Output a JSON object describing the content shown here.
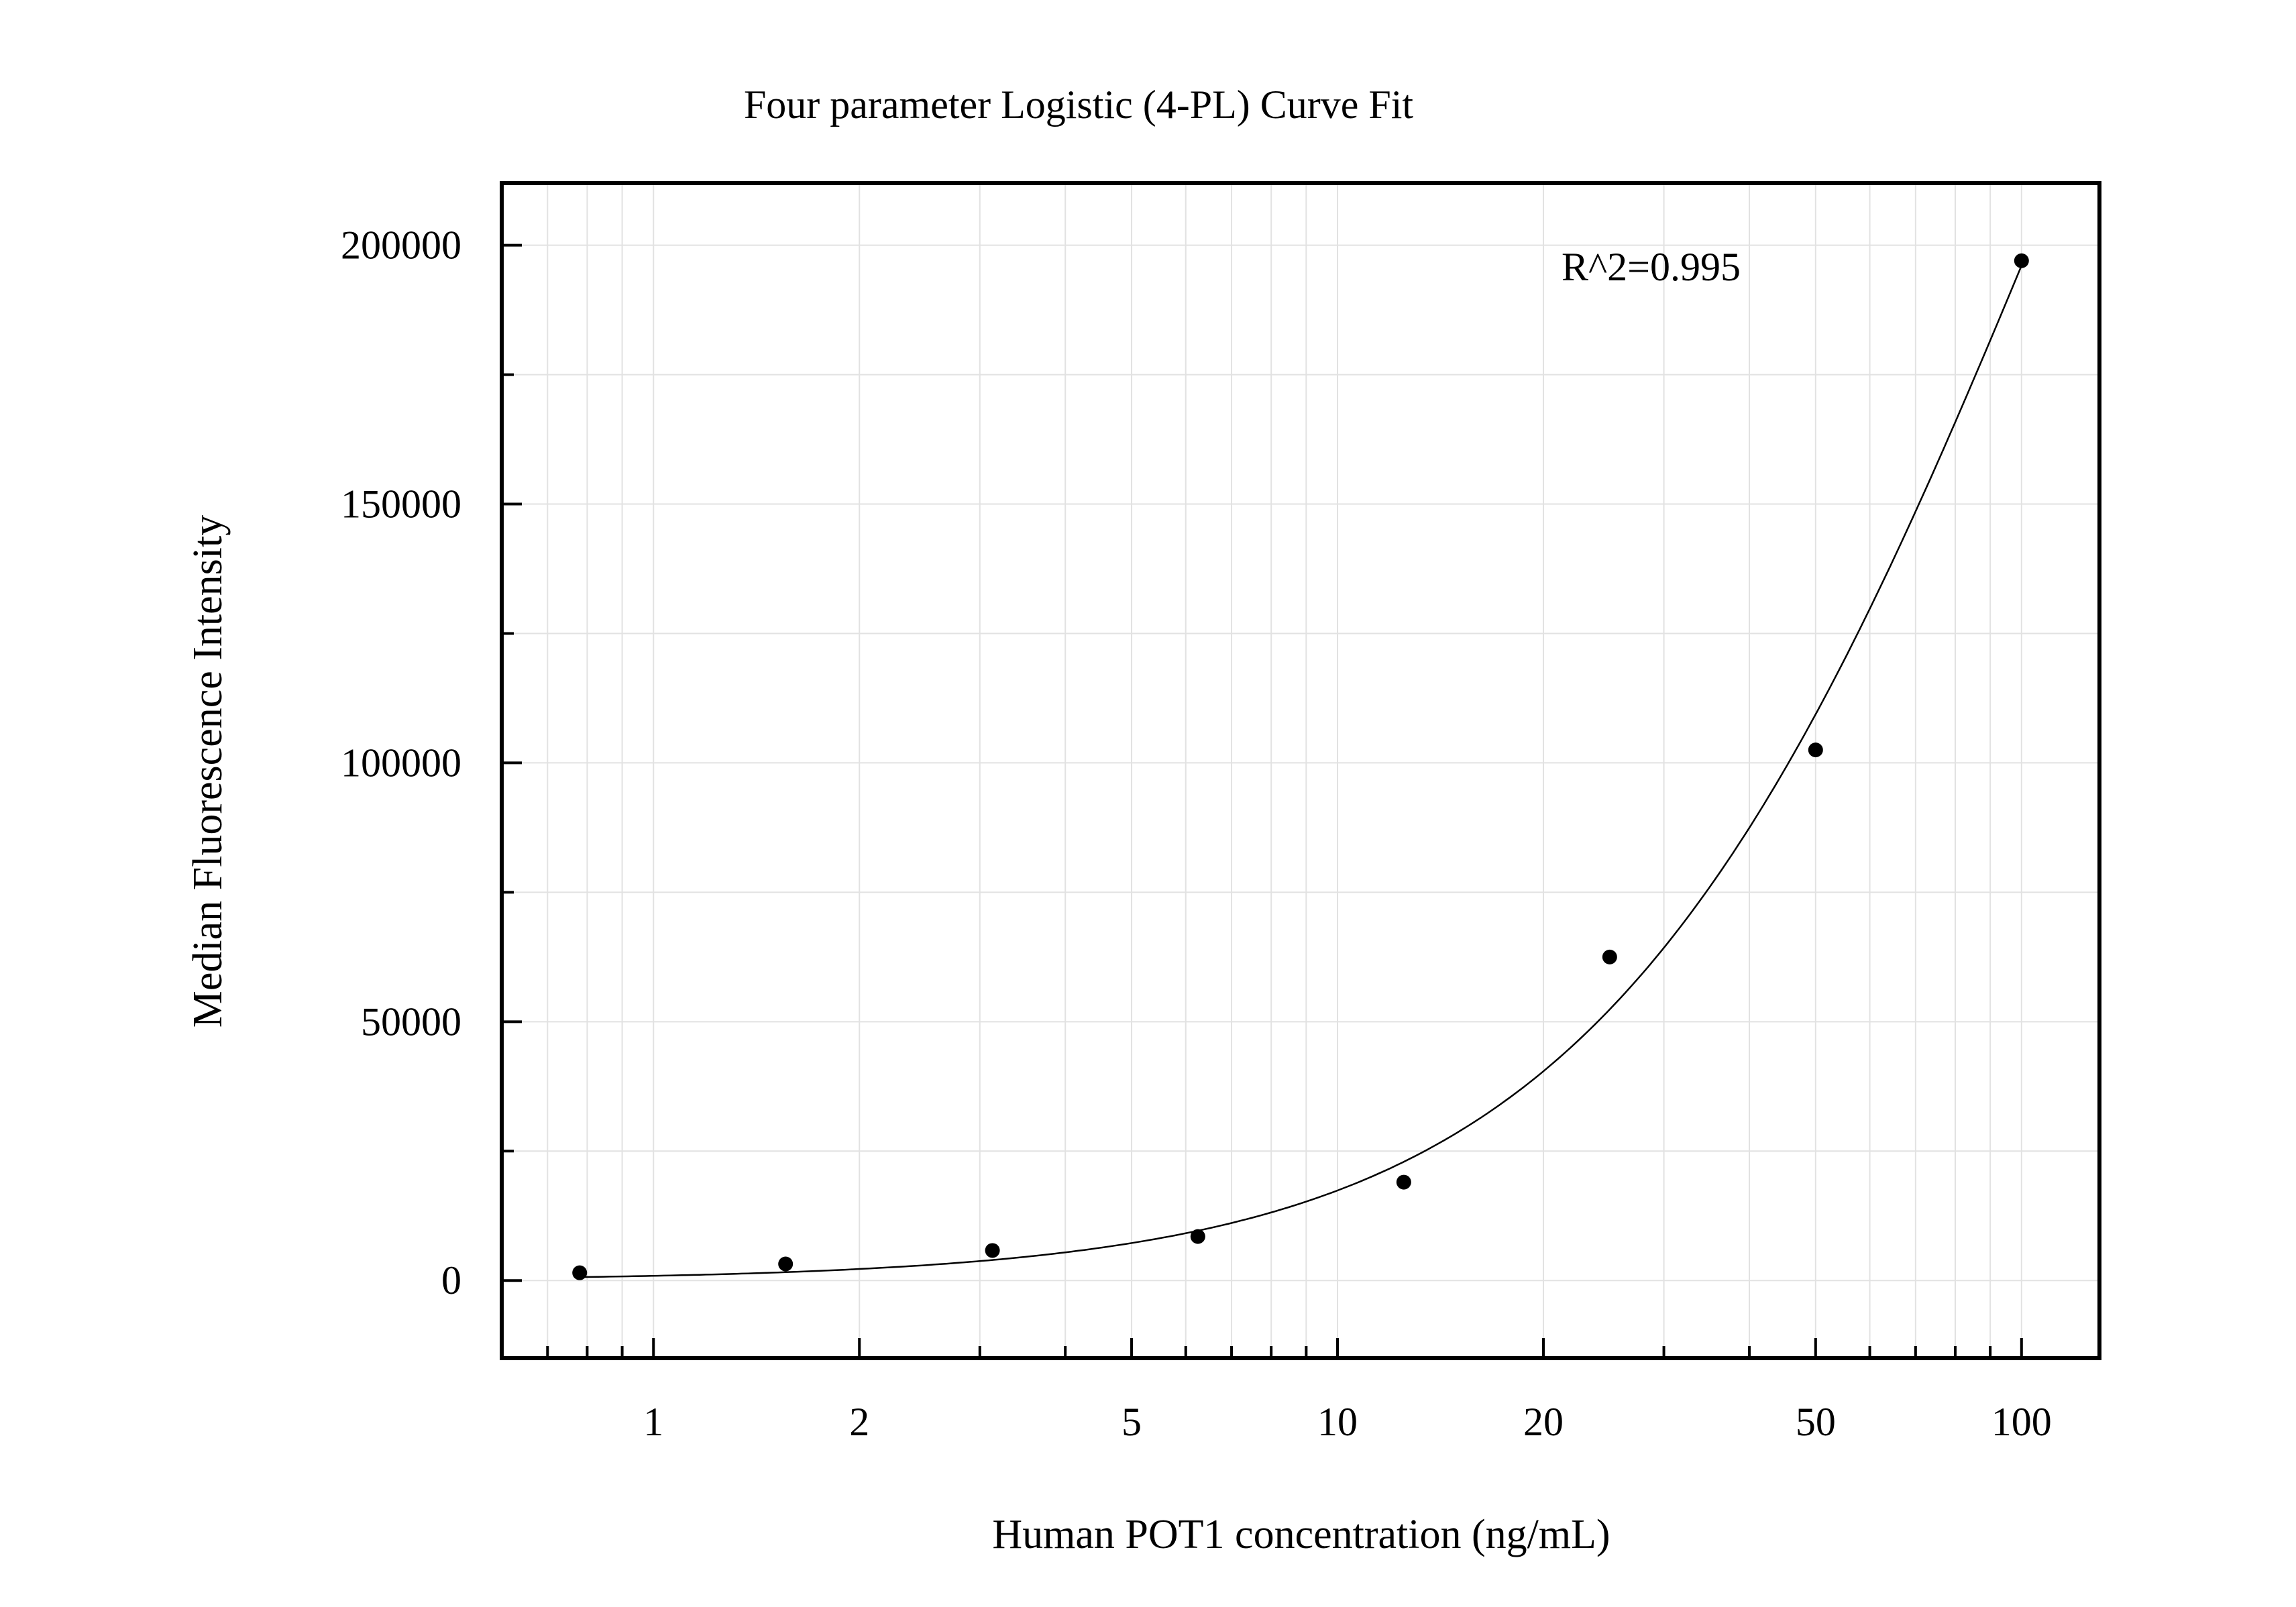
{
  "chart_data": {
    "type": "scatter",
    "title": "Four parameter Logistic (4-PL) Curve Fit",
    "xlabel": "Human POT1 concentration (ng/mL)",
    "ylabel": "Median Fluorescence Intensity",
    "x_scale": "log",
    "xlim": [
      0.6,
      130
    ],
    "ylim": [
      -15000,
      212000
    ],
    "x_ticks": [
      1,
      2,
      5,
      10,
      20,
      50,
      100
    ],
    "x_tick_labels": [
      "1",
      "2",
      "5",
      "10",
      "20",
      "50",
      "100"
    ],
    "y_ticks": [
      0,
      50000,
      100000,
      150000,
      200000
    ],
    "y_tick_labels": [
      "0",
      "50000",
      "100000",
      "150000",
      "200000"
    ],
    "grid": true,
    "annotation": "R^2=0.995",
    "points": {
      "x": [
        0.78,
        1.56,
        3.13,
        6.25,
        12.5,
        25,
        50,
        100
      ],
      "y": [
        1500,
        3200,
        5800,
        8500,
        19000,
        62500,
        102500,
        197000
      ]
    },
    "fit": {
      "model": "4PL",
      "A": 0,
      "B": 1.3,
      "C": 113.8,
      "D": 428000
    }
  }
}
